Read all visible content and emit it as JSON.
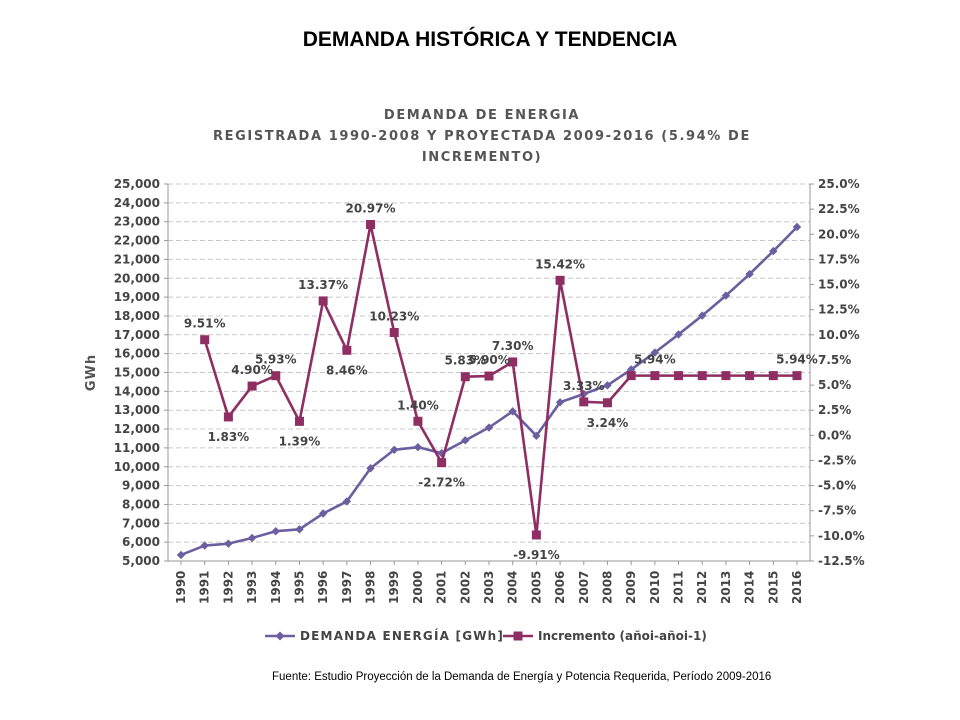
{
  "slide": {
    "title": "DEMANDA HISTÓRICA Y TENDENCIA",
    "source": "Fuente: Estudio Proyección de la Demanda de Energía y Potencia Requerida, Período 2009-2016"
  },
  "chart_data": {
    "type": "line",
    "title_lines": [
      "DEMANDA DE ENERGIA",
      "REGISTRADA 1990-2008 Y PROYECTADA 2009-2016 (5.94% DE",
      "INCREMENTO)"
    ],
    "ylabel": "GWh",
    "x": [
      "1990",
      "1991",
      "1992",
      "1993",
      "1994",
      "1995",
      "1996",
      "1997",
      "1998",
      "1999",
      "2000",
      "2001",
      "2002",
      "2003",
      "2004",
      "2005",
      "2006",
      "2007",
      "2008",
      "2009",
      "2010",
      "2011",
      "2012",
      "2013",
      "2014",
      "2015",
      "2016"
    ],
    "y_left": {
      "min": 5000,
      "max": 25000,
      "step": 1000,
      "tick_labels": [
        "5,000",
        "6,000",
        "7,000",
        "8,000",
        "9,000",
        "10,000",
        "11,000",
        "12,000",
        "13,000",
        "14,000",
        "15,000",
        "16,000",
        "17,000",
        "18,000",
        "19,000",
        "20,000",
        "21,000",
        "22,000",
        "23,000",
        "24,000",
        "25,000"
      ]
    },
    "y_right": {
      "min": -12.5,
      "max": 25,
      "step": 2.5,
      "tick_labels": [
        "-12.5%",
        "-10.0%",
        "-7.5%",
        "-5.0%",
        "-2.5%",
        "0.0%",
        "2.5%",
        "5.0%",
        "7.5%",
        "10.0%",
        "12.5%",
        "15.0%",
        "17.5%",
        "20.0%",
        "22.5%",
        "25.0%"
      ]
    },
    "grid": true,
    "legend_position": "bottom",
    "series": [
      {
        "name": "DEMANDA ENERGÍA [GWh]",
        "axis": "left",
        "color": "#6B5FA0",
        "marker": "diamond",
        "values": [
          5320,
          5820,
          5920,
          6220,
          6580,
          6680,
          7520,
          8160,
          9920,
          10900,
          11040,
          10720,
          11400,
          12080,
          12940,
          11640,
          13420,
          13860,
          14320,
          15160,
          16060,
          17020,
          18020,
          19080,
          20220,
          21440,
          22720
        ]
      },
      {
        "name": "Incremento (añoi-añoi-1)",
        "axis": "right",
        "color": "#8E2E63",
        "marker": "square",
        "values": [
          null,
          9.51,
          1.83,
          4.9,
          5.93,
          1.39,
          13.37,
          8.46,
          20.97,
          10.23,
          1.4,
          -2.72,
          5.83,
          5.9,
          7.3,
          -9.91,
          15.42,
          3.33,
          3.24,
          5.94,
          5.94,
          5.94,
          5.94,
          5.94,
          5.94,
          5.94,
          5.94
        ]
      }
    ],
    "annotations": [
      {
        "x": "1991",
        "text": "9.51%",
        "pos": "above"
      },
      {
        "x": "1992",
        "text": "1.83%",
        "pos": "below"
      },
      {
        "x": "1993",
        "text": "4.90%",
        "pos": "above"
      },
      {
        "x": "1994",
        "text": "5.93%",
        "pos": "above"
      },
      {
        "x": "1995",
        "text": "1.39%",
        "pos": "below"
      },
      {
        "x": "1996",
        "text": "13.37%",
        "pos": "above"
      },
      {
        "x": "1997",
        "text": "8.46%",
        "pos": "below"
      },
      {
        "x": "1998",
        "text": "20.97%",
        "pos": "above"
      },
      {
        "x": "1999",
        "text": "10.23%",
        "pos": "above"
      },
      {
        "x": "2000",
        "text": "1.40%",
        "pos": "above"
      },
      {
        "x": "2001",
        "text": "-2.72%",
        "pos": "below"
      },
      {
        "x": "2002",
        "text": "5.83%",
        "pos": "above"
      },
      {
        "x": "2003",
        "text": "5.90%",
        "pos": "above"
      },
      {
        "x": "2004",
        "text": "7.30%",
        "pos": "above"
      },
      {
        "x": "2005",
        "text": "-9.91%",
        "pos": "below"
      },
      {
        "x": "2006",
        "text": "15.42%",
        "pos": "above"
      },
      {
        "x": "2007",
        "text": "3.33%",
        "pos": "above"
      },
      {
        "x": "2008",
        "text": "3.24%",
        "pos": "below"
      },
      {
        "x": "2010",
        "text": "5.94%",
        "pos": "above"
      },
      {
        "x": "2016",
        "text": "5.94%",
        "pos": "above"
      }
    ]
  }
}
